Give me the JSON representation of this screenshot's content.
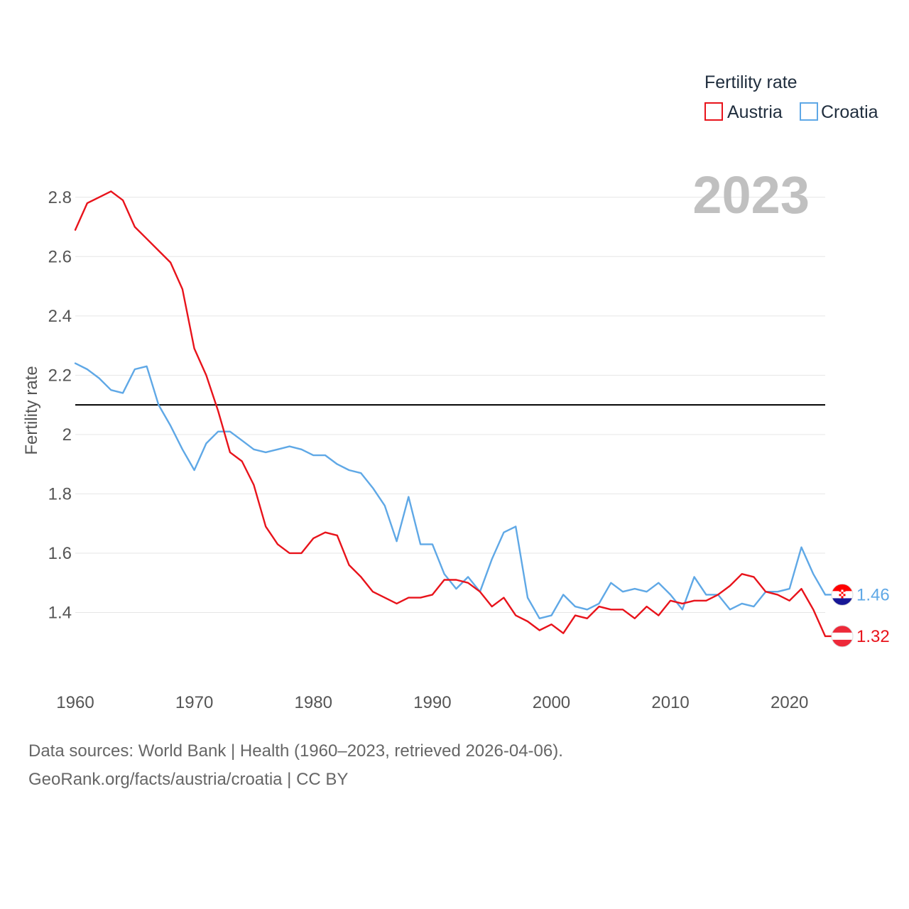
{
  "chart_data": {
    "type": "line",
    "ylabel": "Fertility rate",
    "xlabel": "",
    "ylim": [
      1.2,
      2.9
    ],
    "xlim": [
      1960,
      2023
    ],
    "y_ticks": [
      1.4,
      1.6,
      1.8,
      2,
      2.2,
      2.4,
      2.6,
      2.8
    ],
    "y_tick_labels": [
      "1.4",
      "1.6",
      "1.8",
      "2",
      "2.2",
      "2.4",
      "2.6",
      "2.8"
    ],
    "x_ticks": [
      1960,
      1970,
      1980,
      1990,
      2000,
      2010,
      2020
    ],
    "x_tick_labels": [
      "1960",
      "1970",
      "1980",
      "1990",
      "2000",
      "2010",
      "2020"
    ],
    "grid": true,
    "reference_line": 2.1,
    "year_overlay": "2023",
    "legend": {
      "title": "Fertility rate",
      "placement": "top-right"
    },
    "x": [
      1960,
      1961,
      1962,
      1963,
      1964,
      1965,
      1966,
      1967,
      1968,
      1969,
      1970,
      1971,
      1972,
      1973,
      1974,
      1975,
      1976,
      1977,
      1978,
      1979,
      1980,
      1981,
      1982,
      1983,
      1984,
      1985,
      1986,
      1987,
      1988,
      1989,
      1990,
      1991,
      1992,
      1993,
      1994,
      1995,
      1996,
      1997,
      1998,
      1999,
      2000,
      2001,
      2002,
      2003,
      2004,
      2005,
      2006,
      2007,
      2008,
      2009,
      2010,
      2011,
      2012,
      2013,
      2014,
      2015,
      2016,
      2017,
      2018,
      2019,
      2020,
      2021,
      2022,
      2023
    ],
    "series": [
      {
        "name": "Austria",
        "color": "#e8131b",
        "end_label": "1.32",
        "flag": "austria-flag",
        "values": [
          2.69,
          2.78,
          2.8,
          2.82,
          2.79,
          2.7,
          2.66,
          2.62,
          2.58,
          2.49,
          2.29,
          2.2,
          2.08,
          1.94,
          1.91,
          1.83,
          1.69,
          1.63,
          1.6,
          1.6,
          1.65,
          1.67,
          1.66,
          1.56,
          1.52,
          1.47,
          1.45,
          1.43,
          1.45,
          1.45,
          1.46,
          1.51,
          1.51,
          1.5,
          1.47,
          1.42,
          1.45,
          1.39,
          1.37,
          1.34,
          1.36,
          1.33,
          1.39,
          1.38,
          1.42,
          1.41,
          1.41,
          1.38,
          1.42,
          1.39,
          1.44,
          1.43,
          1.44,
          1.44,
          1.46,
          1.49,
          1.53,
          1.52,
          1.47,
          1.46,
          1.44,
          1.48,
          1.41,
          1.32
        ]
      },
      {
        "name": "Croatia",
        "color": "#5fa8e6",
        "end_label": "1.46",
        "flag": "croatia-flag",
        "values": [
          2.24,
          2.22,
          2.19,
          2.15,
          2.14,
          2.22,
          2.23,
          2.1,
          2.03,
          1.95,
          1.88,
          1.97,
          2.01,
          2.01,
          1.98,
          1.95,
          1.94,
          1.95,
          1.96,
          1.95,
          1.93,
          1.93,
          1.9,
          1.88,
          1.87,
          1.82,
          1.76,
          1.64,
          1.79,
          1.63,
          1.63,
          1.53,
          1.48,
          1.52,
          1.47,
          1.58,
          1.67,
          1.69,
          1.45,
          1.38,
          1.39,
          1.46,
          1.42,
          1.41,
          1.43,
          1.5,
          1.47,
          1.48,
          1.47,
          1.5,
          1.46,
          1.41,
          1.52,
          1.46,
          1.46,
          1.41,
          1.43,
          1.42,
          1.47,
          1.47,
          1.48,
          1.62,
          1.53,
          1.46
        ]
      }
    ]
  },
  "footer": {
    "line1": "Data sources: World Bank | Health (1960–2023, retrieved 2026-04-06).",
    "line2": "GeoRank.org/facts/austria/croatia | CC BY"
  }
}
